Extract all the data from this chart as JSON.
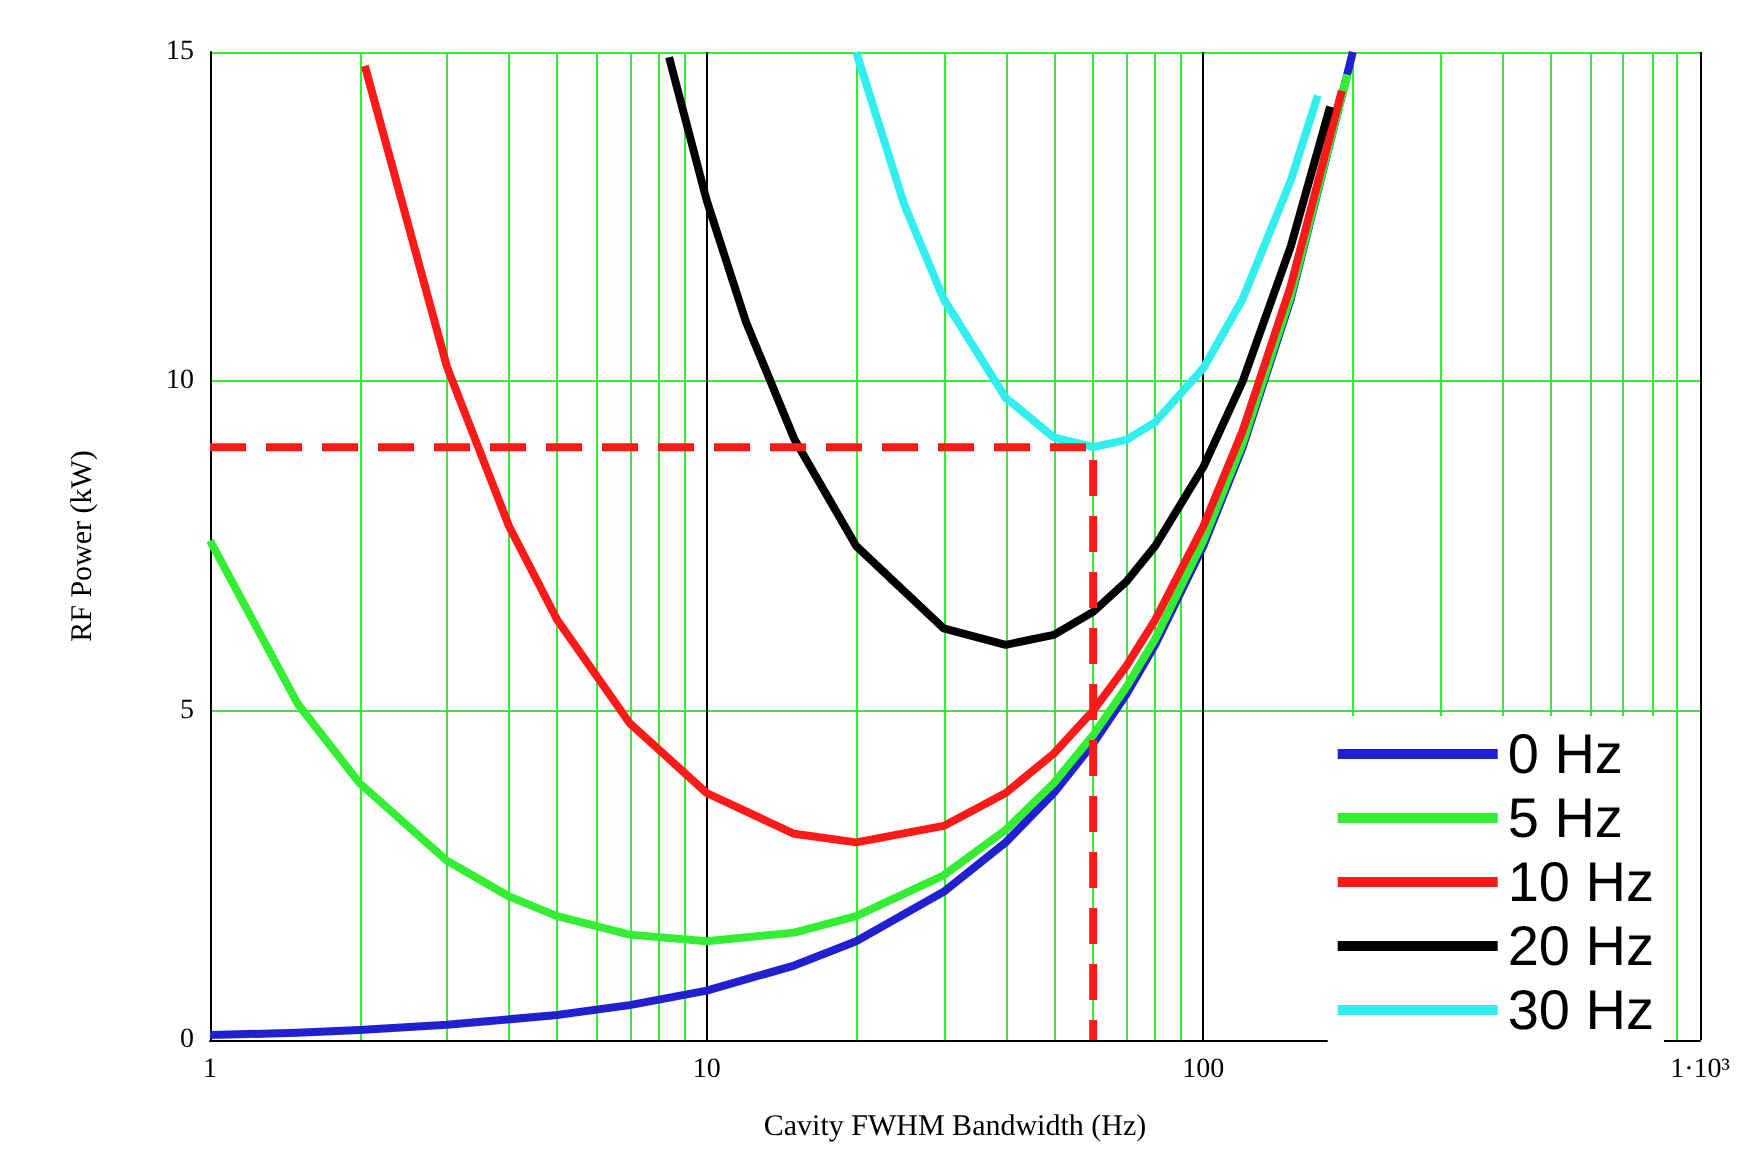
{
  "chart_data": {
    "type": "line",
    "xlabel": "Cavity FWHM Bandwidth (Hz)",
    "ylabel": "RF Power (kW)",
    "log": "x",
    "xlim": [
      1,
      1000
    ],
    "xticks": [
      1,
      10,
      100,
      {
        "value": 1000,
        "label": "1·10³"
      }
    ],
    "ylim": [
      0,
      15
    ],
    "yticks": [
      0,
      5,
      10,
      15
    ],
    "grid": true,
    "legend": "bottom right",
    "line_style": "solid",
    "marker": "none",
    "series": [
      {
        "name": "0 Hz",
        "color": "#2020d0",
        "x": [
          1,
          1.5,
          2,
          3,
          5,
          7,
          10,
          15,
          20,
          30,
          40,
          50,
          60,
          70,
          80,
          100,
          120,
          150,
          200
        ],
        "values": [
          0.075,
          0.11,
          0.15,
          0.23,
          0.38,
          0.53,
          0.75,
          1.13,
          1.5,
          2.25,
          3,
          3.75,
          4.5,
          5.25,
          6,
          7.5,
          9,
          11.25,
          15
        ]
      },
      {
        "name": "5 Hz",
        "color": "#33ee33",
        "x": [
          1,
          1.5,
          2,
          3,
          4,
          5,
          7,
          10,
          15,
          20,
          30,
          40,
          50,
          60,
          70,
          80,
          100,
          120,
          150,
          195
        ],
        "values": [
          7.58,
          5.11,
          3.9,
          2.72,
          2.18,
          1.88,
          1.6,
          1.5,
          1.63,
          1.88,
          2.5,
          3.19,
          3.9,
          4.63,
          5.36,
          6.09,
          7.58,
          9.06,
          11.3,
          14.66
        ]
      },
      {
        "name": "10 Hz",
        "color": "#ff1a1a",
        "x": [
          2.05,
          3,
          4,
          5,
          7,
          10,
          15,
          20,
          30,
          40,
          50,
          60,
          70,
          80,
          100,
          120,
          150,
          190
        ],
        "values": [
          14.79,
          10.22,
          7.8,
          6.38,
          4.81,
          3.75,
          3.13,
          3,
          3.25,
          3.75,
          4.35,
          5,
          5.68,
          6.38,
          7.8,
          9.25,
          11.45,
          14.41
        ]
      },
      {
        "name": "20 Hz",
        "color": "#000000",
        "x": [
          8.4,
          10,
          12,
          15,
          20,
          30,
          40,
          50,
          60,
          70,
          80,
          100,
          120,
          150,
          180
        ],
        "values": [
          14.92,
          12.75,
          10.9,
          9.13,
          7.5,
          6.25,
          6,
          6.15,
          6.5,
          6.96,
          7.5,
          8.7,
          10,
          12.05,
          14.17
        ]
      },
      {
        "name": "30 Hz",
        "color": "#33eeee",
        "x": [
          20,
          25,
          30,
          40,
          50,
          60,
          70,
          80,
          100,
          120,
          150,
          170
        ],
        "values": [
          15,
          12.68,
          11.25,
          9.75,
          9.15,
          9,
          9.11,
          9.38,
          10.2,
          11.25,
          13.05,
          14.34
        ]
      },
      {
        "color": "#ff1a1a",
        "line_style": "dashed",
        "x": [
          1,
          60,
          60
        ],
        "values": [
          9,
          9,
          0
        ]
      }
    ]
  }
}
